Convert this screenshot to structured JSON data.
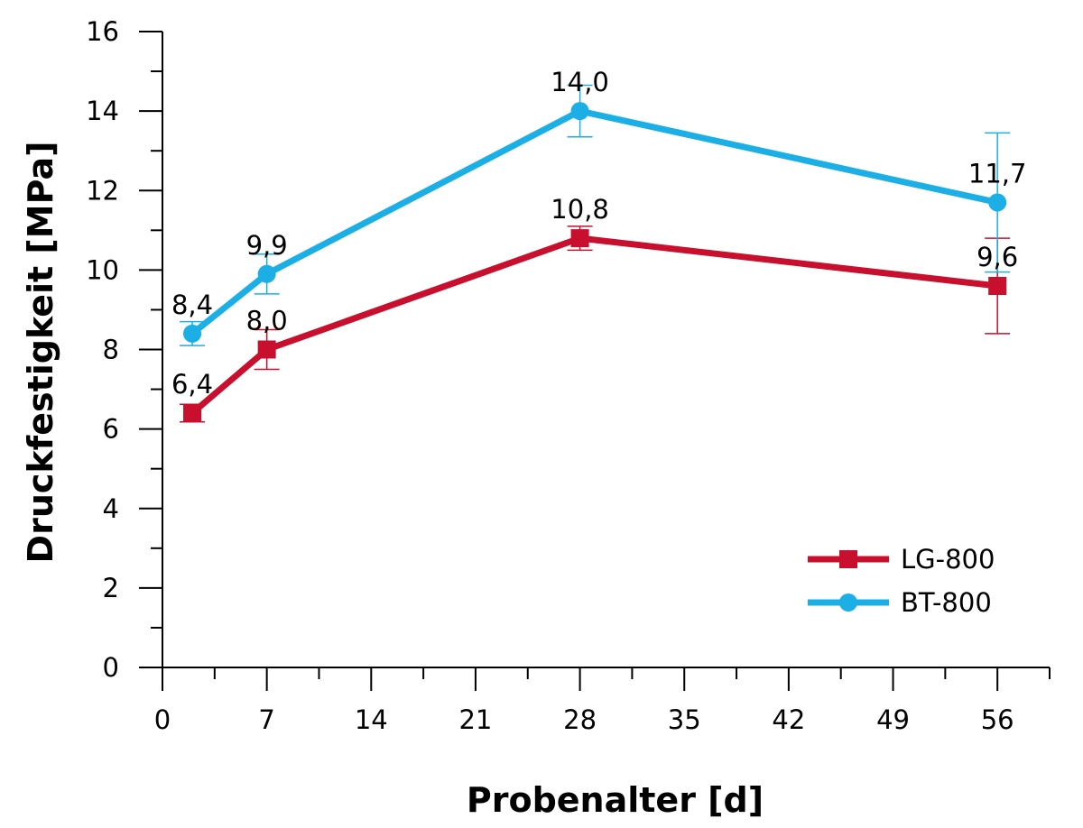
{
  "chart_data": {
    "type": "line",
    "title": "",
    "xlabel": "Probenalter [d]",
    "ylabel": "Druckfestigkeit [MPa]",
    "xlim": [
      0,
      59.5
    ],
    "ylim": [
      0,
      16
    ],
    "xticks": [
      0,
      7,
      14,
      21,
      28,
      35,
      42,
      49,
      56
    ],
    "yticks": [
      0,
      2,
      4,
      6,
      8,
      10,
      12,
      14,
      16
    ],
    "xtick_labels": [
      "0",
      "7",
      "14",
      "21",
      "28",
      "35",
      "42",
      "49",
      "56"
    ],
    "ytick_labels": [
      "0",
      "2",
      "4",
      "6",
      "8",
      "10",
      "12",
      "14",
      "16"
    ],
    "grid": false,
    "legend_position": "bottom-right",
    "series": [
      {
        "name": "LG-800",
        "color": "#c8102e",
        "marker": "square",
        "x": [
          2,
          7,
          28,
          56
        ],
        "y": [
          6.4,
          8.0,
          10.8,
          9.6
        ],
        "err": [
          0.22,
          0.5,
          0.3,
          1.2
        ],
        "labels": [
          "6,4",
          "8,0",
          "10,8",
          "9,6"
        ]
      },
      {
        "name": "BT-800",
        "color": "#1cafe6",
        "marker": "circle",
        "x": [
          2,
          7,
          28,
          56
        ],
        "y": [
          8.4,
          9.9,
          14.0,
          11.7
        ],
        "err": [
          0.3,
          0.5,
          0.65,
          1.75
        ],
        "labels": [
          "8,4",
          "9,9",
          "14,0",
          "11,7"
        ]
      }
    ]
  }
}
